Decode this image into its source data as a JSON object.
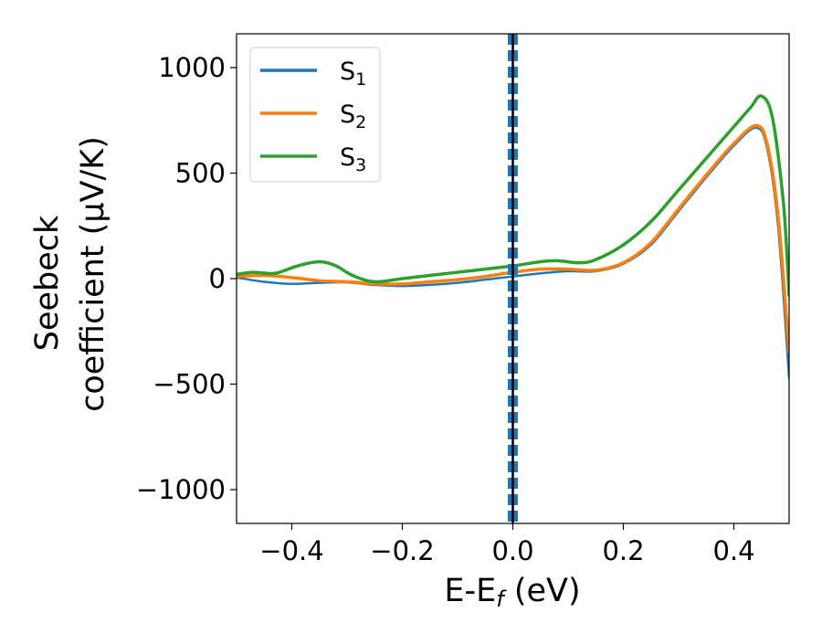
{
  "chart_data": {
    "type": "line",
    "xlabel": {
      "main": "E-E",
      "sub": "f",
      "rest": " (eV)"
    },
    "ylabel_lines": [
      "Seebeck",
      "coefficient  (μV/K)"
    ],
    "xlim": [
      -0.5,
      0.5
    ],
    "ylim": [
      -1160,
      1160
    ],
    "xticks": [
      -0.4,
      -0.2,
      0.0,
      0.2,
      0.4
    ],
    "xtick_labels": [
      "−0.4",
      "−0.2",
      "0.0",
      "0.2",
      "0.4"
    ],
    "yticks": [
      -1000,
      -500,
      0,
      500,
      1000
    ],
    "ytick_labels": [
      "−1000",
      "−500",
      "0",
      "500",
      "1000"
    ],
    "grid": false,
    "legend_position": "top-left",
    "fermi_level_x": 0.0,
    "series": [
      {
        "name": "S",
        "sub": "1",
        "color": "#1f77b4",
        "width": 2.5,
        "points": [
          [
            -0.5,
            5
          ],
          [
            -0.45,
            -15
          ],
          [
            -0.4,
            -25
          ],
          [
            -0.35,
            -20
          ],
          [
            -0.3,
            -18
          ],
          [
            -0.25,
            -30
          ],
          [
            -0.2,
            -35
          ],
          [
            -0.15,
            -30
          ],
          [
            -0.1,
            -20
          ],
          [
            -0.05,
            -5
          ],
          [
            0.0,
            10
          ],
          [
            0.05,
            25
          ],
          [
            0.1,
            35
          ],
          [
            0.15,
            35
          ],
          [
            0.2,
            70
          ],
          [
            0.25,
            160
          ],
          [
            0.3,
            320
          ],
          [
            0.35,
            480
          ],
          [
            0.4,
            630
          ],
          [
            0.44,
            715
          ],
          [
            0.46,
            620
          ],
          [
            0.48,
            250
          ],
          [
            0.5,
            -470
          ]
        ]
      },
      {
        "name": "S",
        "sub": "2",
        "color": "#ff7f0e",
        "width": 3.5,
        "points": [
          [
            -0.5,
            10
          ],
          [
            -0.45,
            15
          ],
          [
            -0.4,
            5
          ],
          [
            -0.35,
            -10
          ],
          [
            -0.3,
            -15
          ],
          [
            -0.25,
            -25
          ],
          [
            -0.2,
            -25
          ],
          [
            -0.15,
            -15
          ],
          [
            -0.1,
            -5
          ],
          [
            -0.05,
            10
          ],
          [
            0.0,
            30
          ],
          [
            0.05,
            45
          ],
          [
            0.1,
            45
          ],
          [
            0.15,
            40
          ],
          [
            0.2,
            75
          ],
          [
            0.25,
            170
          ],
          [
            0.3,
            330
          ],
          [
            0.35,
            490
          ],
          [
            0.4,
            640
          ],
          [
            0.44,
            725
          ],
          [
            0.46,
            640
          ],
          [
            0.48,
            300
          ],
          [
            0.5,
            -350
          ]
        ]
      },
      {
        "name": "S",
        "sub": "3",
        "color": "#2ca02c",
        "width": 3.5,
        "points": [
          [
            -0.5,
            20
          ],
          [
            -0.47,
            30
          ],
          [
            -0.43,
            25
          ],
          [
            -0.39,
            60
          ],
          [
            -0.35,
            80
          ],
          [
            -0.32,
            60
          ],
          [
            -0.29,
            15
          ],
          [
            -0.25,
            -15
          ],
          [
            -0.2,
            0
          ],
          [
            -0.15,
            15
          ],
          [
            -0.1,
            30
          ],
          [
            -0.05,
            45
          ],
          [
            0.0,
            60
          ],
          [
            0.05,
            80
          ],
          [
            0.08,
            85
          ],
          [
            0.12,
            75
          ],
          [
            0.15,
            90
          ],
          [
            0.2,
            160
          ],
          [
            0.25,
            270
          ],
          [
            0.3,
            420
          ],
          [
            0.35,
            570
          ],
          [
            0.4,
            720
          ],
          [
            0.43,
            810
          ],
          [
            0.45,
            865
          ],
          [
            0.47,
            760
          ],
          [
            0.49,
            350
          ],
          [
            0.5,
            -80
          ]
        ]
      }
    ]
  }
}
